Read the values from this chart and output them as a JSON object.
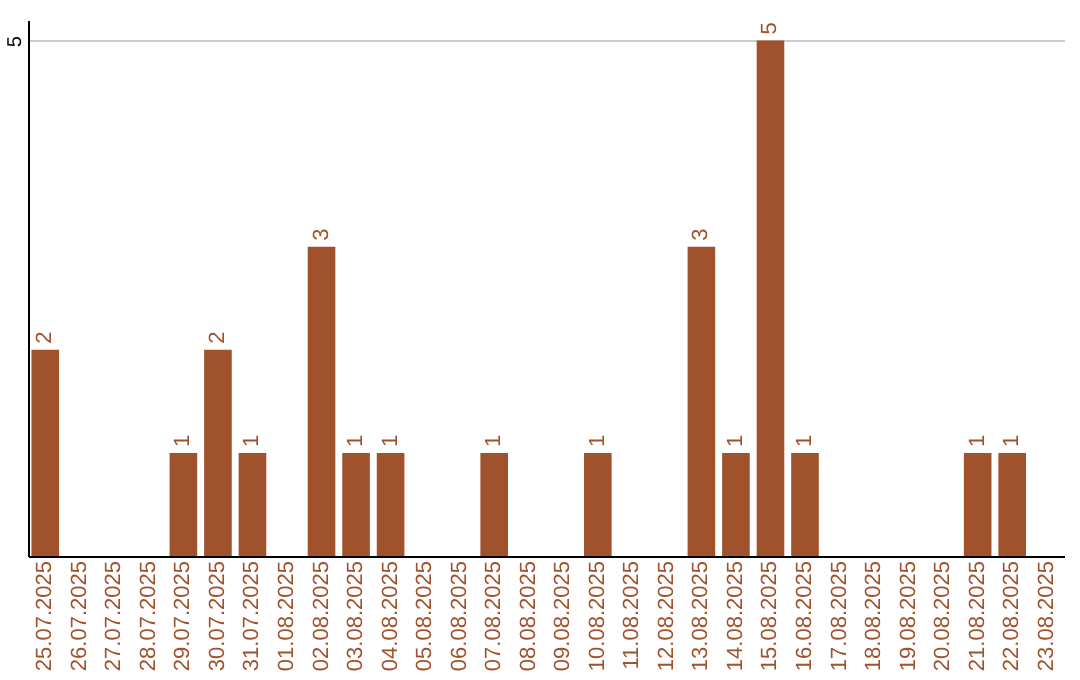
{
  "chart_data": {
    "type": "bar",
    "categories": [
      "25.07.2025",
      "26.07.2025",
      "27.07.2025",
      "28.07.2025",
      "29.07.2025",
      "30.07.2025",
      "31.07.2025",
      "01.08.2025",
      "02.08.2025",
      "03.08.2025",
      "04.08.2025",
      "05.08.2025",
      "06.08.2025",
      "07.08.2025",
      "08.08.2025",
      "09.08.2025",
      "10.08.2025",
      "11.08.2025",
      "12.08.2025",
      "13.08.2025",
      "14.08.2025",
      "15.08.2025",
      "16.08.2025",
      "17.08.2025",
      "18.08.2025",
      "19.08.2025",
      "20.08.2025",
      "21.08.2025",
      "22.08.2025",
      "23.08.2025"
    ],
    "values": [
      2,
      0,
      0,
      0,
      1,
      2,
      1,
      0,
      3,
      1,
      1,
      0,
      0,
      1,
      0,
      0,
      1,
      0,
      0,
      3,
      1,
      5,
      1,
      0,
      0,
      0,
      0,
      1,
      1,
      0
    ],
    "value_labels": [
      "2",
      null,
      null,
      null,
      "1",
      "2",
      "1",
      null,
      "3",
      "1",
      "1",
      null,
      null,
      "1",
      null,
      null,
      "1",
      null,
      null,
      "3",
      "1",
      "5",
      "1",
      null,
      null,
      null,
      null,
      "1",
      "1",
      null
    ],
    "color": "#a0522d",
    "ylim": [
      0,
      5.2
    ],
    "yticks": [
      5
    ],
    "grid": "y"
  }
}
